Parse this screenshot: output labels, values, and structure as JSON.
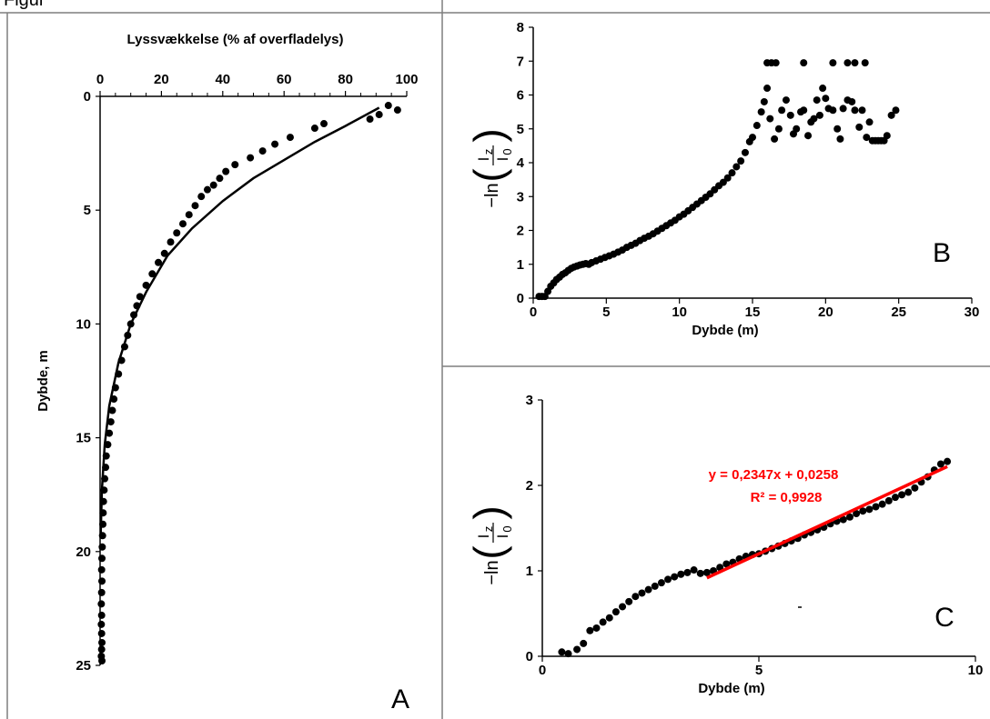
{
  "header_text": "Figur",
  "chart_data": [
    {
      "id": "A",
      "type": "scatter",
      "panel_letter": "A",
      "title": "",
      "xlabel": "Lyssvækkelse (% af overfladelys)",
      "ylabel": "Dybde, m",
      "xlim": [
        0,
        100
      ],
      "ylim": [
        0,
        25
      ],
      "y_inverted": true,
      "x_axis_position": "top",
      "x_ticks": [
        "0",
        "20",
        "40",
        "60",
        "80",
        "100"
      ],
      "y_ticks": [
        "0",
        "5",
        "10",
        "15",
        "20",
        "25"
      ],
      "grid": false,
      "legend": "none",
      "series": [
        {
          "kind": "points",
          "x": [
            97,
            94,
            91,
            88,
            73,
            70,
            62,
            57,
            53,
            49,
            44,
            41,
            39,
            37,
            35,
            33,
            31,
            29,
            27,
            25,
            23,
            21,
            19,
            17,
            15,
            13,
            12,
            11,
            10,
            9,
            8,
            7,
            6,
            5,
            4.5,
            4,
            3.5,
            3,
            2.5,
            2,
            1.8,
            1.5,
            1.3,
            1.1,
            1,
            0.9,
            0.8,
            0.7,
            0.6,
            0.5,
            0.6,
            0.5,
            0.4,
            0.5,
            0.4,
            0.5,
            0.6,
            0.5,
            0.4,
            0.6
          ],
          "y": [
            0.6,
            0.4,
            0.8,
            1,
            1.2,
            1.4,
            1.8,
            2.1,
            2.4,
            2.7,
            3.0,
            3.3,
            3.6,
            3.9,
            4.1,
            4.4,
            4.8,
            5.2,
            5.6,
            6.0,
            6.4,
            6.9,
            7.3,
            7.8,
            8.3,
            8.8,
            9.2,
            9.6,
            10.0,
            10.5,
            11.0,
            11.6,
            12.2,
            12.8,
            13.3,
            13.8,
            14.3,
            14.8,
            15.3,
            15.8,
            16.3,
            16.8,
            17.3,
            17.8,
            18.3,
            18.8,
            19.3,
            19.8,
            20.3,
            20.8,
            21.3,
            21.8,
            22.3,
            22.8,
            23.2,
            23.6,
            24.0,
            24.3,
            24.6,
            24.8
          ]
        },
        {
          "kind": "fit-line",
          "x": [
            91,
            80,
            70,
            60,
            50,
            40,
            30,
            22,
            15,
            10,
            6,
            3,
            1.5,
            0.6,
            0.2
          ],
          "y": [
            0.5,
            1.3,
            2.0,
            2.8,
            3.6,
            4.6,
            5.8,
            7.0,
            8.6,
            10.0,
            11.7,
            13.6,
            15.3,
            17.3,
            19.2
          ]
        }
      ]
    },
    {
      "id": "B",
      "type": "scatter",
      "panel_letter": "B",
      "title": "",
      "xlabel": "Dybde (m)",
      "ylabel_main": "−ln",
      "ylabel_num": "I",
      "ylabel_num_sub": "z",
      "ylabel_den": "I",
      "ylabel_den_sub": "0",
      "xlim": [
        0,
        30
      ],
      "ylim": [
        0,
        8
      ],
      "x_ticks": [
        "0",
        "5",
        "10",
        "15",
        "20",
        "25",
        "30"
      ],
      "y_ticks": [
        "0",
        "1",
        "2",
        "3",
        "4",
        "5",
        "6",
        "7",
        "8"
      ],
      "grid": false,
      "legend": "none",
      "series": [
        {
          "kind": "points",
          "x": [
            0.4,
            0.6,
            0.8,
            1.0,
            1.2,
            1.4,
            1.6,
            1.8,
            2.0,
            2.2,
            2.4,
            2.6,
            2.8,
            3.0,
            3.2,
            3.4,
            3.6,
            3.8,
            4.0,
            4.3,
            4.6,
            4.9,
            5.2,
            5.5,
            5.8,
            6.1,
            6.4,
            6.7,
            7.0,
            7.3,
            7.6,
            7.9,
            8.2,
            8.5,
            8.8,
            9.1,
            9.4,
            9.7,
            10.0,
            10.3,
            10.6,
            10.9,
            11.2,
            11.5,
            11.8,
            12.1,
            12.4,
            12.7,
            13.0,
            13.3,
            13.6,
            13.9,
            14.2,
            14.5,
            14.8,
            15.0,
            15.3,
            15.6,
            15.8,
            16.0,
            16.2,
            16.5,
            16.8,
            17.0,
            17.3,
            17.6,
            17.8,
            18.0,
            18.3,
            18.5,
            18.8,
            19.0,
            19.2,
            19.4,
            19.6,
            19.8,
            20.0,
            20.2,
            20.5,
            20.8,
            21.0,
            21.2,
            21.5,
            21.8,
            22.0,
            22.3,
            22.5,
            22.8,
            23.0,
            23.2,
            23.4,
            23.6,
            23.8,
            24.0,
            24.2,
            24.5,
            24.8,
            16.0,
            16.3,
            16.6,
            18.5,
            20.5,
            21.5,
            22.0,
            22.7
          ],
          "y": [
            0.05,
            0.05,
            0.05,
            0.2,
            0.35,
            0.45,
            0.55,
            0.62,
            0.7,
            0.75,
            0.82,
            0.88,
            0.92,
            0.95,
            0.98,
            1.0,
            1.02,
            1.0,
            1.05,
            1.1,
            1.15,
            1.2,
            1.25,
            1.3,
            1.36,
            1.42,
            1.5,
            1.56,
            1.62,
            1.7,
            1.77,
            1.83,
            1.9,
            1.98,
            2.06,
            2.14,
            2.22,
            2.3,
            2.4,
            2.48,
            2.58,
            2.68,
            2.78,
            2.88,
            2.98,
            3.08,
            3.2,
            3.32,
            3.42,
            3.55,
            3.7,
            3.88,
            4.05,
            4.3,
            4.62,
            4.75,
            5.1,
            5.5,
            5.8,
            6.2,
            5.3,
            4.7,
            5.0,
            5.55,
            5.85,
            5.4,
            4.85,
            5.0,
            5.5,
            5.55,
            4.8,
            5.2,
            5.3,
            5.85,
            5.4,
            6.2,
            5.9,
            5.6,
            5.55,
            5.0,
            4.7,
            5.6,
            5.85,
            5.8,
            5.55,
            5.05,
            5.55,
            4.75,
            5.2,
            4.65,
            4.65,
            4.65,
            4.65,
            4.65,
            4.8,
            5.4,
            5.55,
            6.95,
            6.95,
            6.95,
            6.95,
            6.95,
            6.95,
            6.95,
            6.95
          ]
        }
      ]
    },
    {
      "id": "C",
      "type": "scatter",
      "panel_letter": "C",
      "title": "",
      "xlabel": "Dybde (m)",
      "ylabel_main": "−ln",
      "ylabel_num": "I",
      "ylabel_num_sub": "z",
      "ylabel_den": "I",
      "ylabel_den_sub": "0",
      "xlim": [
        0,
        10
      ],
      "ylim": [
        0,
        3
      ],
      "x_ticks": [
        "0",
        "5",
        "10"
      ],
      "y_ticks": [
        "0",
        "1",
        "2",
        "3"
      ],
      "grid": false,
      "legend": "none",
      "trendline_color": "#ff0000",
      "equation": "y = 0,2347x + 0,0258",
      "r_squared": "R² = 0,9928",
      "trendline": {
        "slope": 0.2347,
        "intercept": 0.0258,
        "x": [
          3.8,
          9.35
        ]
      },
      "series": [
        {
          "kind": "points",
          "x": [
            0.45,
            0.6,
            0.8,
            0.95,
            1.1,
            1.25,
            1.4,
            1.55,
            1.7,
            1.85,
            2.0,
            2.15,
            2.3,
            2.45,
            2.6,
            2.75,
            2.9,
            3.05,
            3.2,
            3.35,
            3.5,
            3.65,
            3.8,
            3.95,
            4.1,
            4.25,
            4.4,
            4.55,
            4.7,
            4.85,
            5.0,
            5.15,
            5.3,
            5.45,
            5.6,
            5.75,
            5.9,
            6.05,
            6.2,
            6.35,
            6.5,
            6.65,
            6.8,
            6.95,
            7.1,
            7.25,
            7.4,
            7.55,
            7.7,
            7.85,
            8.0,
            8.15,
            8.3,
            8.45,
            8.6,
            8.75,
            8.9,
            9.05,
            9.2,
            9.35
          ],
          "y": [
            0.05,
            0.03,
            0.08,
            0.15,
            0.3,
            0.33,
            0.4,
            0.45,
            0.52,
            0.58,
            0.64,
            0.7,
            0.74,
            0.78,
            0.82,
            0.86,
            0.9,
            0.93,
            0.96,
            0.98,
            1.01,
            0.97,
            0.98,
            1.0,
            1.04,
            1.08,
            1.1,
            1.14,
            1.17,
            1.19,
            1.2,
            1.23,
            1.26,
            1.29,
            1.32,
            1.35,
            1.38,
            1.42,
            1.45,
            1.48,
            1.51,
            1.55,
            1.58,
            1.6,
            1.63,
            1.67,
            1.7,
            1.72,
            1.75,
            1.78,
            1.82,
            1.86,
            1.89,
            1.92,
            1.97,
            2.04,
            2.1,
            2.18,
            2.25,
            2.28
          ]
        }
      ]
    }
  ]
}
